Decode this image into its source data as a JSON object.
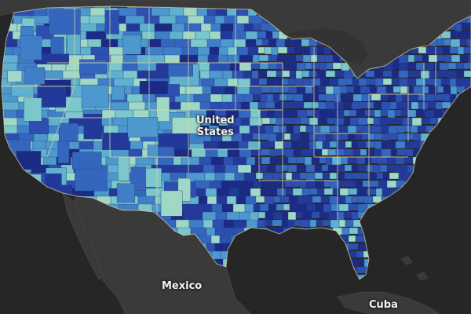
{
  "map": {
    "labels": {
      "us_line1": "United",
      "us_line2": "States",
      "mexico": "Mexico",
      "cuba": "Cuba"
    },
    "colors": {
      "ocean": "#262626",
      "land_other": "#3a3a3a",
      "land_other_border": "#4a4a4a",
      "state_border": "#d9d69a",
      "county_border": "#2a3f7a",
      "palette": [
        "#1b2a84",
        "#23399a",
        "#2c4fb0",
        "#3566bd",
        "#3f7fc8",
        "#4d99ce",
        "#5fb1cf",
        "#7bc7cc",
        "#9fd9c5"
      ]
    },
    "regions": {
      "west": {
        "dark_share": 0.28,
        "light_share": 0.72
      },
      "plains": {
        "dark_share": 0.55,
        "light_share": 0.45
      },
      "east": {
        "dark_share": 0.8,
        "light_share": 0.2
      }
    }
  }
}
